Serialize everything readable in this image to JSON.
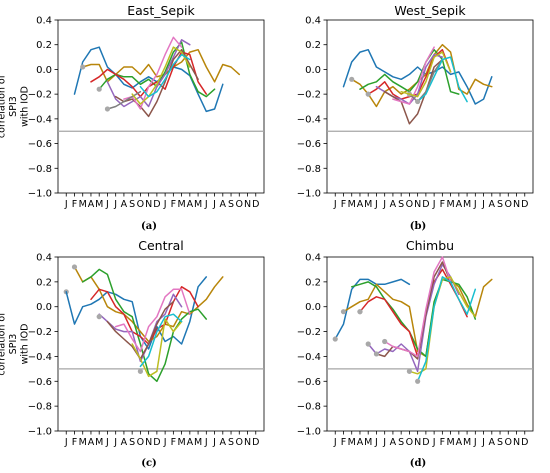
{
  "chart_data": [
    {
      "type": "line",
      "title": "East_Sepik",
      "caption": "(a)",
      "ylabel": "correlation of\nSPI3\nwith IOD",
      "ylim": [
        -1.0,
        0.4
      ],
      "yticks": [
        "0.4",
        "0.2",
        "0.0",
        "−0.2",
        "−0.4",
        "−0.6",
        "−0.8",
        "−1.0"
      ],
      "xtick_labels": [
        "J",
        "F",
        "M",
        "A",
        "M",
        "J",
        "J",
        "A",
        "S",
        "O",
        "N",
        "D",
        "J",
        "F",
        "M",
        "A",
        "M",
        "J",
        "J",
        "A",
        "S",
        "O",
        "N",
        "D"
      ],
      "reference_line": -0.5,
      "series": [
        {
          "color": "#1f77b4",
          "start": 1,
          "start_marker": false,
          "values": [
            -0.2,
            0.06,
            0.16,
            0.18,
            0.02,
            -0.04,
            -0.12,
            -0.15,
            -0.1,
            -0.06,
            -0.1,
            -0.04,
            0.02,
            0.0,
            -0.05,
            -0.2,
            -0.34,
            -0.32,
            -0.12
          ]
        },
        {
          "color": "#b8860b",
          "start": 2,
          "start_marker": true,
          "values": [
            0.02,
            0.04,
            0.04,
            -0.1,
            -0.04,
            0.02,
            0.02,
            -0.04,
            0.04,
            -0.06,
            -0.04,
            0.02,
            0.06,
            0.14,
            0.16,
            0.02,
            -0.1,
            0.04,
            0.02,
            -0.04
          ]
        },
        {
          "color": "#2ca02c",
          "start": 4,
          "start_marker": true,
          "values": [
            -0.16,
            -0.08,
            -0.04,
            -0.06,
            -0.06,
            -0.12,
            -0.08,
            -0.14,
            -0.02,
            0.14,
            0.22,
            -0.04,
            -0.18,
            -0.22,
            -0.16
          ]
        },
        {
          "color": "#d62728",
          "start": 3,
          "start_marker": false,
          "values": [
            -0.1,
            -0.06,
            0.0,
            -0.04,
            -0.08,
            -0.14,
            -0.22,
            -0.14,
            -0.1,
            -0.16,
            0.02,
            0.14,
            0.12,
            -0.1,
            -0.2
          ]
        },
        {
          "color": "#9467bd",
          "start": 5,
          "start_marker": false,
          "values": [
            -0.1,
            -0.24,
            -0.3,
            -0.26,
            -0.22,
            -0.3,
            -0.14,
            -0.04,
            0.1,
            0.24,
            0.2
          ]
        },
        {
          "color": "#8c564b",
          "start": 6,
          "start_marker": false,
          "values": [
            -0.22,
            -0.26,
            -0.24,
            -0.3,
            -0.38,
            -0.26,
            -0.1,
            0.08,
            0.16,
            0.04,
            -0.08
          ]
        },
        {
          "color": "#e377c2",
          "start": 7,
          "start_marker": false,
          "values": [
            -0.24,
            -0.22,
            -0.32,
            -0.14,
            -0.04,
            0.12,
            0.26,
            0.18
          ]
        },
        {
          "color": "#7f7f7f",
          "start": 5,
          "start_marker": true,
          "values": [
            -0.32,
            -0.3,
            -0.26,
            -0.22,
            -0.18
          ]
        },
        {
          "color": "#bcbd22",
          "start": 8,
          "start_marker": false,
          "values": [
            -0.2,
            -0.28,
            -0.22,
            -0.12,
            0.02,
            0.18,
            0.14,
            0.02
          ]
        },
        {
          "color": "#17becf",
          "start": 9,
          "start_marker": false,
          "values": [
            -0.14,
            -0.22,
            -0.18,
            -0.08,
            0.04,
            0.12,
            0.08
          ]
        }
      ]
    },
    {
      "type": "line",
      "title": "West_Sepik",
      "caption": "(b)",
      "ylabel": "",
      "ylim": [
        -1.0,
        0.4
      ],
      "yticks": [
        "0.4",
        "0.2",
        "0.0",
        "−0.2",
        "−0.4",
        "−0.6",
        "−0.8",
        "−1.0"
      ],
      "xtick_labels": [
        "J",
        "F",
        "M",
        "A",
        "M",
        "J",
        "J",
        "A",
        "S",
        "O",
        "N",
        "D",
        "J",
        "F",
        "M",
        "A",
        "M",
        "J",
        "J",
        "A",
        "S",
        "O",
        "N",
        "D"
      ],
      "reference_line": -0.5,
      "series": [
        {
          "color": "#1f77b4",
          "start": 1,
          "start_marker": false,
          "values": [
            -0.14,
            0.06,
            0.14,
            0.16,
            0.02,
            -0.02,
            -0.06,
            -0.08,
            -0.04,
            0.02,
            -0.04,
            -0.02,
            0.02,
            -0.04,
            -0.02,
            -0.14,
            -0.28,
            -0.24,
            -0.06
          ]
        },
        {
          "color": "#b8860b",
          "start": 2,
          "start_marker": true,
          "values": [
            -0.08,
            -0.12,
            -0.2,
            -0.3,
            -0.18,
            -0.14,
            -0.2,
            -0.16,
            -0.1,
            -0.04,
            0.12,
            0.2,
            0.14,
            -0.16,
            -0.2,
            -0.08,
            -0.12,
            -0.14
          ]
        },
        {
          "color": "#2ca02c",
          "start": 3,
          "start_marker": false,
          "values": [
            -0.16,
            -0.12,
            -0.1,
            -0.04,
            -0.1,
            -0.14,
            -0.18,
            -0.1,
            0.06,
            0.16,
            0.08,
            -0.18,
            -0.2
          ]
        },
        {
          "color": "#d62728",
          "start": 4,
          "start_marker": true,
          "values": [
            -0.2,
            -0.16,
            -0.1,
            -0.2,
            -0.24,
            -0.22,
            -0.2,
            -0.06,
            0.1,
            0.16,
            -0.02
          ]
        },
        {
          "color": "#9467bd",
          "start": 5,
          "start_marker": false,
          "values": [
            -0.14,
            -0.18,
            -0.22,
            -0.24,
            -0.28,
            -0.2,
            0.02,
            0.12,
            0.1
          ]
        },
        {
          "color": "#8c564b",
          "start": 6,
          "start_marker": false,
          "values": [
            -0.18,
            -0.22,
            -0.26,
            -0.44,
            -0.36,
            -0.18,
            0.02,
            0.08
          ]
        },
        {
          "color": "#e377c2",
          "start": 7,
          "start_marker": false,
          "values": [
            -0.24,
            -0.26,
            -0.28,
            -0.14,
            0.06,
            0.18
          ]
        },
        {
          "color": "#7f7f7f",
          "start": 9,
          "start_marker": true,
          "values": [
            -0.2,
            -0.26,
            -0.18,
            -0.02,
            0.08
          ]
        },
        {
          "color": "#bcbd22",
          "start": 8,
          "start_marker": false,
          "values": [
            -0.18,
            -0.2,
            -0.22,
            -0.1,
            0.1,
            0.14,
            -0.02
          ]
        },
        {
          "color": "#17becf",
          "start": 10,
          "start_marker": true,
          "values": [
            -0.26,
            -0.2,
            -0.06,
            0.08,
            0.1,
            -0.14,
            -0.26
          ]
        }
      ]
    },
    {
      "type": "line",
      "title": "Central",
      "caption": "(c)",
      "ylabel": "correlation of\nSPI3\nwith IOD",
      "ylim": [
        -1.0,
        0.4
      ],
      "yticks": [
        "0.4",
        "0.2",
        "0.0",
        "−0.2",
        "−0.4",
        "−0.6",
        "−0.8",
        "−1.0"
      ],
      "xtick_labels": [
        "J",
        "F",
        "M",
        "A",
        "M",
        "J",
        "J",
        "A",
        "S",
        "O",
        "N",
        "D",
        "J",
        "F",
        "M",
        "A",
        "M",
        "J",
        "J",
        "A",
        "S",
        "O",
        "N",
        "D"
      ],
      "reference_line": -0.5,
      "series": [
        {
          "color": "#7f7f7f",
          "start": 0,
          "start_marker": true,
          "values": [
            0.12
          ]
        },
        {
          "color": "#1f77b4",
          "start": 0,
          "start_marker": false,
          "values": [
            0.12,
            -0.14,
            0.0,
            0.02,
            0.06,
            0.12,
            0.1,
            0.06,
            0.04,
            -0.24,
            -0.34,
            -0.16,
            -0.28,
            -0.24,
            -0.3,
            -0.12,
            0.16,
            0.24
          ]
        },
        {
          "color": "#b8860b",
          "start": 1,
          "start_marker": true,
          "values": [
            0.32,
            0.2,
            0.24,
            0.14,
            0.0,
            -0.04,
            -0.06,
            -0.12,
            -0.2,
            -0.28,
            -0.24,
            -0.14,
            -0.16,
            -0.04,
            -0.06,
            0.0,
            0.06,
            0.16,
            0.24
          ]
        },
        {
          "color": "#2ca02c",
          "start": 2,
          "start_marker": false,
          "values": [
            0.2,
            0.24,
            0.3,
            0.26,
            0.06,
            -0.04,
            -0.08,
            -0.3,
            -0.54,
            -0.6,
            -0.46,
            -0.2,
            -0.1,
            -0.04,
            -0.02,
            -0.1
          ]
        },
        {
          "color": "#d62728",
          "start": 3,
          "start_marker": false,
          "values": [
            0.06,
            0.14,
            0.12,
            0.0,
            -0.06,
            -0.2,
            -0.24,
            -0.3,
            -0.18,
            -0.14,
            0.04,
            0.16,
            0.12,
            0.0
          ]
        },
        {
          "color": "#9467bd",
          "start": 4,
          "start_marker": false,
          "values": [
            -0.06,
            -0.12,
            -0.18,
            -0.2,
            -0.2,
            -0.44,
            -0.3,
            -0.12,
            -0.06,
            0.1,
            0.0
          ]
        },
        {
          "color": "#8c564b",
          "start": 5,
          "start_marker": false,
          "values": [
            -0.12,
            -0.2,
            -0.26,
            -0.32,
            -0.42,
            -0.3,
            -0.14,
            -0.02,
            0.04
          ]
        },
        {
          "color": "#e377c2",
          "start": 6,
          "start_marker": false,
          "values": [
            -0.16,
            -0.14,
            -0.26,
            -0.36,
            -0.16,
            -0.08,
            0.08,
            0.14,
            0.14,
            -0.06
          ]
        },
        {
          "color": "#bcbd22",
          "start": 8,
          "start_marker": false,
          "values": [
            -0.3,
            -0.42,
            -0.56,
            -0.52,
            -0.1,
            -0.2,
            -0.12
          ]
        },
        {
          "color": "#17becf",
          "start": 9,
          "start_marker": false,
          "values": [
            -0.48,
            -0.4,
            -0.2,
            -0.08,
            -0.06,
            -0.12
          ]
        },
        {
          "color": "#7f7f7f",
          "start": 4,
          "start_marker": true,
          "values": [
            -0.08
          ]
        },
        {
          "color": "#7f7f7f",
          "start": 9,
          "start_marker": true,
          "values": [
            -0.52
          ]
        }
      ]
    },
    {
      "type": "line",
      "title": "Chimbu",
      "caption": "(d)",
      "ylabel": "",
      "ylim": [
        -1.0,
        0.4
      ],
      "yticks": [
        "0.4",
        "0.2",
        "0.0",
        "−0.2",
        "−0.4",
        "−0.6",
        "−0.8",
        "−1.0"
      ],
      "xtick_labels": [
        "J",
        "F",
        "M",
        "A",
        "M",
        "J",
        "J",
        "A",
        "S",
        "O",
        "N",
        "D",
        "J",
        "F",
        "M",
        "A",
        "M",
        "J",
        "J",
        "A",
        "S",
        "O",
        "N",
        "D"
      ],
      "reference_line": -0.5,
      "series": [
        {
          "color": "#1f77b4",
          "start": 0,
          "start_marker": true,
          "values": [
            -0.26,
            -0.14,
            0.14,
            0.22,
            0.22,
            0.18,
            0.18,
            0.2,
            0.22,
            0.18
          ]
        },
        {
          "color": "#b8860b",
          "start": 1,
          "start_marker": true,
          "values": [
            -0.04,
            0.0,
            0.04,
            0.06,
            0.18,
            0.12,
            0.06,
            0.04,
            0.0,
            -0.36,
            -0.4,
            0.02,
            0.22,
            0.22,
            0.16,
            0.02,
            -0.08,
            0.16,
            0.22
          ]
        },
        {
          "color": "#2ca02c",
          "start": 2,
          "start_marker": false,
          "values": [
            0.16,
            0.18,
            0.2,
            0.16,
            0.06,
            -0.02,
            -0.12,
            -0.2,
            -0.34,
            -0.4,
            0.04,
            0.22,
            0.2,
            0.18,
            0.08,
            -0.1
          ]
        },
        {
          "color": "#d62728",
          "start": 3,
          "start_marker": true,
          "values": [
            -0.04,
            0.04,
            0.08,
            0.06,
            -0.04,
            -0.14,
            -0.2,
            -0.4,
            -0.06,
            0.2,
            0.3,
            0.18,
            0.06,
            -0.08
          ]
        },
        {
          "color": "#9467bd",
          "start": 4,
          "start_marker": true,
          "values": [
            -0.3,
            -0.38,
            -0.34,
            -0.36,
            -0.3,
            -0.36,
            -0.52,
            -0.08,
            0.18,
            0.34,
            0.24,
            0.1
          ]
        },
        {
          "color": "#8c564b",
          "start": 5,
          "start_marker": true,
          "values": [
            -0.38,
            -0.4,
            -0.32,
            -0.34,
            -0.36,
            -0.42,
            -0.06,
            0.24,
            0.36,
            0.2
          ]
        },
        {
          "color": "#e377c2",
          "start": 6,
          "start_marker": true,
          "values": [
            -0.28,
            -0.32,
            -0.34,
            -0.36,
            -0.4,
            -0.02,
            0.28,
            0.4,
            0.2
          ]
        },
        {
          "color": "#bcbd22",
          "start": 9,
          "start_marker": true,
          "values": [
            -0.52,
            -0.54,
            -0.5,
            0.0,
            0.22,
            0.24,
            0.12,
            0.0,
            -0.08
          ]
        },
        {
          "color": "#17becf",
          "start": 10,
          "start_marker": true,
          "values": [
            -0.6,
            -0.44,
            0.0,
            0.24,
            0.2,
            0.06,
            -0.06,
            0.14
          ]
        },
        {
          "color": "#7f7f7f",
          "start": 3,
          "start_marker": true,
          "values": [
            -0.04
          ]
        }
      ]
    }
  ]
}
